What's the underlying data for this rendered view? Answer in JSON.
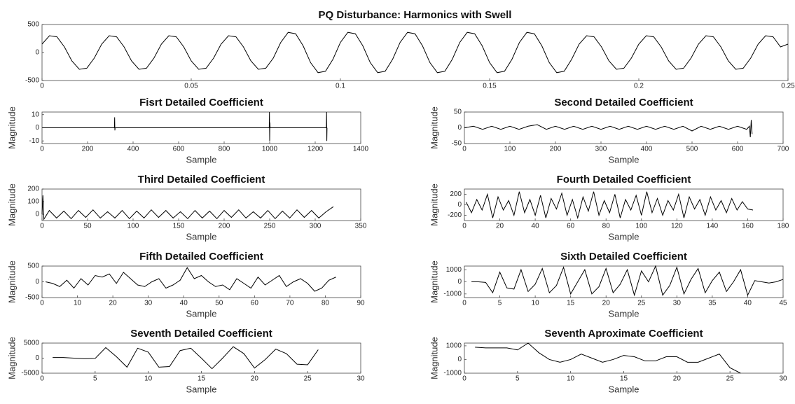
{
  "chart_data": [
    {
      "type": "line",
      "title": "PQ Disturbance: Harmonics with Swell",
      "color": "#000000",
      "x": [
        0,
        0.0025,
        0.005,
        0.0075,
        0.01,
        0.0125,
        0.015,
        0.0175,
        0.02,
        0.0225,
        0.025,
        0.0275,
        0.03,
        0.0325,
        0.035,
        0.0375,
        0.04,
        0.0425,
        0.045,
        0.0475,
        0.05,
        0.0525,
        0.055,
        0.0575,
        0.06,
        0.0625,
        0.065,
        0.0675,
        0.07,
        0.0725,
        0.075,
        0.0775,
        0.08,
        0.0825,
        0.085,
        0.0875,
        0.09,
        0.0925,
        0.095,
        0.0975,
        0.1,
        0.1025,
        0.105,
        0.1075,
        0.11,
        0.1125,
        0.115,
        0.1175,
        0.12,
        0.1225,
        0.125,
        0.1275,
        0.13,
        0.1325,
        0.135,
        0.1375,
        0.14,
        0.1425,
        0.145,
        0.1475,
        0.15,
        0.1525,
        0.155,
        0.1575,
        0.16,
        0.1625,
        0.165,
        0.1675,
        0.17,
        0.1725,
        0.175,
        0.1775,
        0.18,
        0.1825,
        0.185,
        0.1875,
        0.19,
        0.1925,
        0.195,
        0.1975,
        0.2,
        0.2025,
        0.205,
        0.2075,
        0.21,
        0.2125,
        0.215,
        0.2175,
        0.22,
        0.2225,
        0.225,
        0.2275,
        0.23,
        0.2325,
        0.235,
        0.2375,
        0.24,
        0.2425,
        0.245,
        0.2475,
        0.25
      ],
      "values": [
        150,
        300,
        280,
        100,
        -150,
        -300,
        -280,
        -100,
        150,
        300,
        280,
        100,
        -150,
        -300,
        -280,
        -100,
        150,
        300,
        280,
        100,
        -150,
        -300,
        -280,
        -100,
        150,
        300,
        280,
        100,
        -150,
        -300,
        -280,
        -100,
        180,
        360,
        335,
        120,
        -180,
        -360,
        -335,
        -120,
        180,
        360,
        335,
        120,
        -180,
        -360,
        -335,
        -120,
        180,
        360,
        335,
        120,
        -180,
        -360,
        -335,
        -120,
        180,
        360,
        335,
        120,
        -180,
        -360,
        -335,
        -120,
        180,
        360,
        335,
        120,
        -180,
        -360,
        -335,
        -120,
        150,
        300,
        280,
        100,
        -150,
        -300,
        -280,
        -100,
        150,
        300,
        280,
        100,
        -150,
        -300,
        -280,
        -100,
        150,
        300,
        280,
        100,
        -150,
        -300,
        -280,
        -100,
        150,
        300,
        280,
        100,
        150
      ],
      "xlim": [
        0,
        0.25
      ],
      "xticks": [
        0,
        0.05,
        0.1,
        0.15,
        0.2,
        0.25
      ],
      "ylim": [
        -500,
        500
      ],
      "yticks": [
        -500,
        0,
        500
      ]
    },
    {
      "type": "line",
      "title": "Fisrt Detailed Coefficient",
      "xlabel": "Sample",
      "ylabel": "Magnitude",
      "color": "#000000",
      "x": [
        1,
        318,
        319,
        320,
        321,
        998,
        999,
        1000,
        1001,
        1002,
        1248,
        1249,
        1250,
        1251,
        1252
      ],
      "values": [
        0,
        0,
        8,
        -2,
        0,
        0,
        12,
        -10,
        4,
        0,
        0,
        0,
        12,
        -10,
        0
      ],
      "xlim": [
        0,
        1400
      ],
      "xticks": [
        0,
        200,
        400,
        600,
        800,
        1000,
        1200,
        1400
      ],
      "ylim": [
        -12,
        12
      ],
      "yticks": [
        -10,
        0,
        10
      ]
    },
    {
      "type": "line",
      "title": "Second Detailed Coefficient",
      "xlabel": "Sample",
      "ylabel": "Magnitude",
      "color": "#000000",
      "x": [
        0,
        20,
        40,
        60,
        80,
        100,
        120,
        140,
        160,
        180,
        200,
        220,
        240,
        260,
        280,
        300,
        320,
        340,
        360,
        380,
        400,
        420,
        440,
        460,
        480,
        500,
        520,
        540,
        560,
        580,
        600,
        620,
        626,
        628,
        630,
        632
      ],
      "values": [
        0,
        5,
        -5,
        5,
        -5,
        5,
        -5,
        5,
        10,
        -5,
        5,
        -5,
        5,
        -5,
        5,
        -5,
        5,
        -5,
        5,
        -5,
        5,
        -5,
        5,
        -5,
        5,
        -10,
        5,
        -5,
        5,
        -5,
        5,
        -5,
        5,
        -30,
        25,
        -20
      ],
      "xlim": [
        0,
        700
      ],
      "xticks": [
        0,
        100,
        200,
        300,
        400,
        500,
        600,
        700
      ],
      "ylim": [
        -50,
        50
      ],
      "yticks": [
        -50,
        0,
        50
      ]
    },
    {
      "type": "line",
      "title": "Third Detailed Coefficient",
      "xlabel": "Sample",
      "ylabel": "Magnitude",
      "color": "#000000",
      "x": [
        0,
        1,
        2,
        8,
        16,
        24,
        32,
        40,
        48,
        56,
        64,
        72,
        80,
        88,
        96,
        104,
        112,
        120,
        128,
        136,
        144,
        152,
        160,
        168,
        176,
        184,
        192,
        200,
        208,
        216,
        224,
        232,
        240,
        248,
        256,
        264,
        272,
        280,
        288,
        296,
        304,
        312,
        320
      ],
      "values": [
        0,
        150,
        -40,
        30,
        -30,
        25,
        -35,
        30,
        -25,
        35,
        -30,
        20,
        -30,
        30,
        -35,
        25,
        -30,
        35,
        -25,
        30,
        -30,
        20,
        -35,
        30,
        -30,
        25,
        -35,
        30,
        -25,
        35,
        -30,
        20,
        -30,
        30,
        -35,
        25,
        -30,
        35,
        -25,
        30,
        -30,
        20,
        60
      ],
      "xlim": [
        0,
        350
      ],
      "xticks": [
        0,
        50,
        100,
        150,
        200,
        250,
        300,
        350
      ],
      "ylim": [
        -50,
        200
      ],
      "yticks": [
        0,
        100,
        200
      ]
    },
    {
      "type": "line",
      "title": "Fourth Detailed Coefficient",
      "xlabel": "Sample",
      "ylabel": "Magnitude",
      "color": "#000000",
      "x": [
        1,
        4,
        7,
        10,
        13,
        16,
        19,
        22,
        25,
        28,
        31,
        34,
        37,
        40,
        43,
        46,
        49,
        52,
        55,
        58,
        61,
        64,
        67,
        70,
        73,
        76,
        79,
        82,
        85,
        88,
        91,
        94,
        97,
        100,
        103,
        106,
        109,
        112,
        115,
        118,
        121,
        124,
        127,
        130,
        133,
        136,
        139,
        142,
        145,
        148,
        151,
        154,
        157,
        160,
        163
      ],
      "values": [
        50,
        -150,
        100,
        -100,
        200,
        -250,
        150,
        -100,
        80,
        -200,
        250,
        -150,
        100,
        -200,
        180,
        -250,
        120,
        -80,
        220,
        -200,
        100,
        -250,
        150,
        -120,
        250,
        -200,
        80,
        -150,
        200,
        -250,
        100,
        -100,
        180,
        -200,
        250,
        -150,
        120,
        -200,
        80,
        -100,
        200,
        -250,
        150,
        -80,
        100,
        -200,
        150,
        -100,
        80,
        -150,
        120,
        -100,
        60,
        -80,
        -100
      ],
      "xlim": [
        0,
        180
      ],
      "xticks": [
        0,
        20,
        40,
        60,
        80,
        100,
        120,
        140,
        160,
        180
      ],
      "ylim": [
        -300,
        300
      ],
      "yticks": [
        -200,
        0,
        200
      ]
    },
    {
      "type": "line",
      "title": "Fifth Detailed Coefficient",
      "xlabel": "Sample",
      "ylabel": "Magnitude",
      "color": "#000000",
      "x": [
        1,
        3,
        5,
        7,
        9,
        11,
        13,
        15,
        17,
        19,
        21,
        23,
        25,
        27,
        29,
        31,
        33,
        35,
        37,
        39,
        41,
        43,
        45,
        47,
        49,
        51,
        53,
        55,
        57,
        59,
        61,
        63,
        65,
        67,
        69,
        71,
        73,
        75,
        77,
        79,
        81,
        83
      ],
      "values": [
        0,
        -50,
        -150,
        50,
        -200,
        100,
        -100,
        200,
        150,
        250,
        -50,
        300,
        100,
        -100,
        -150,
        0,
        100,
        -200,
        -100,
        50,
        450,
        100,
        200,
        0,
        -150,
        -100,
        -250,
        100,
        -50,
        -200,
        150,
        -100,
        50,
        200,
        -150,
        0,
        100,
        -50,
        -300,
        -200,
        50,
        150
      ],
      "xlim": [
        0,
        90
      ],
      "xticks": [
        0,
        10,
        20,
        30,
        40,
        50,
        60,
        70,
        80,
        90
      ],
      "ylim": [
        -500,
        500
      ],
      "yticks": [
        -500,
        0,
        500
      ]
    },
    {
      "type": "line",
      "title": "Sixth Detailed Coefficient",
      "xlabel": "Sample",
      "ylabel": "Magnitude",
      "color": "#000000",
      "x": [
        1,
        2,
        3,
        4,
        5,
        6,
        7,
        8,
        9,
        10,
        11,
        12,
        13,
        14,
        15,
        16,
        17,
        18,
        19,
        20,
        21,
        22,
        23,
        24,
        25,
        26,
        27,
        28,
        29,
        30,
        31,
        32,
        33,
        34,
        35,
        36,
        37,
        38,
        39,
        40,
        41,
        42,
        43,
        44,
        45
      ],
      "values": [
        0,
        0,
        -50,
        -900,
        800,
        -500,
        -600,
        1000,
        -800,
        -200,
        1100,
        -900,
        -300,
        1200,
        -1000,
        0,
        1000,
        -1000,
        -400,
        1100,
        -900,
        -200,
        1000,
        -1100,
        900,
        0,
        1300,
        -1100,
        -300,
        1200,
        -1000,
        200,
        1100,
        -900,
        100,
        800,
        -800,
        0,
        1000,
        -1100,
        100,
        0,
        -100,
        0,
        200
      ],
      "xlim": [
        0,
        45
      ],
      "xticks": [
        0,
        5,
        10,
        15,
        20,
        25,
        30,
        35,
        40,
        45
      ],
      "ylim": [
        -1300,
        1300
      ],
      "yticks": [
        -1000,
        0,
        1000
      ]
    },
    {
      "type": "line",
      "title": "Seventh Detailed Coefficient",
      "xlabel": "Sample",
      "ylabel": "Magnitude",
      "color": "#000000",
      "x": [
        1,
        2,
        3,
        4,
        5,
        6,
        7,
        8,
        9,
        10,
        11,
        12,
        13,
        14,
        15,
        16,
        17,
        18,
        19,
        20,
        21,
        22,
        23,
        24,
        25,
        26
      ],
      "values": [
        200,
        200,
        0,
        -200,
        -100,
        3500,
        500,
        -3000,
        3300,
        2000,
        -3000,
        -2800,
        2500,
        3300,
        0,
        -3500,
        0,
        3800,
        1500,
        -3300,
        -500,
        3000,
        1500,
        -2000,
        -2200,
        2800
      ],
      "xlim": [
        0,
        30
      ],
      "xticks": [
        0,
        5,
        10,
        15,
        20,
        25,
        30
      ],
      "ylim": [
        -5000,
        5000
      ],
      "yticks": [
        -5000,
        0,
        5000
      ]
    },
    {
      "type": "line",
      "title": "Seventh Aproximate Coefficient",
      "xlabel": "Sample",
      "ylabel": "Magnitude",
      "color": "#000000",
      "x": [
        1,
        2,
        3,
        4,
        5,
        6,
        7,
        8,
        9,
        10,
        11,
        12,
        13,
        14,
        15,
        16,
        17,
        18,
        19,
        20,
        21,
        22,
        23,
        24,
        25,
        26
      ],
      "values": [
        900,
        850,
        850,
        850,
        700,
        1200,
        500,
        0,
        -200,
        0,
        400,
        100,
        -200,
        0,
        300,
        200,
        -100,
        -100,
        200,
        200,
        -200,
        -200,
        100,
        400,
        -600,
        -1000
      ],
      "xlim": [
        0,
        30
      ],
      "xticks": [
        0,
        5,
        10,
        15,
        20,
        25,
        30
      ],
      "ylim": [
        -1000,
        1200
      ],
      "yticks": [
        -1000,
        0,
        1000
      ]
    }
  ]
}
